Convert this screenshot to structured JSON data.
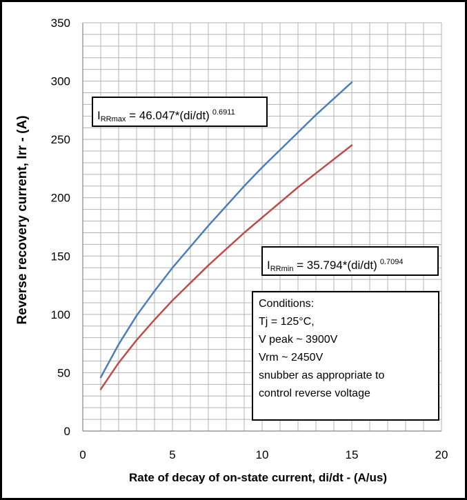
{
  "chart_data": {
    "type": "line",
    "xlabel": "Rate of decay of on-state current, di/dt - (A/us)",
    "ylabel": "Reverse recovery current, Irr  - (A)",
    "xlim": [
      0,
      20
    ],
    "ylim": [
      0,
      350
    ],
    "x_ticks": [
      "0",
      "5",
      "10",
      "15",
      "20"
    ],
    "y_ticks": [
      "0",
      "50",
      "100",
      "150",
      "200",
      "250",
      "300",
      "350"
    ],
    "grid": true,
    "series": [
      {
        "color": "#4a7ebb",
        "x": [
          1,
          2,
          3,
          4,
          5,
          6,
          7,
          8,
          9,
          10,
          11,
          12,
          13,
          14,
          15
        ],
        "values": [
          46.0,
          74.3,
          98.9,
          120.0,
          140.0,
          158.0,
          176.0,
          193.0,
          210.0,
          226.0,
          241.0,
          256.0,
          271.0,
          285.0,
          299.0
        ]
      },
      {
        "color": "#be4b48",
        "x": [
          1,
          2,
          3,
          4,
          5,
          6,
          7,
          8,
          9,
          10,
          11,
          12,
          13,
          14,
          15
        ],
        "values": [
          35.8,
          58.5,
          77.9,
          95.4,
          112.0,
          127.0,
          142.0,
          156.0,
          170.0,
          183.0,
          196.0,
          209.0,
          221.0,
          233.0,
          245.0
        ]
      }
    ],
    "annotations": {
      "irrmax": {
        "base": "I",
        "sub": "RRmax",
        "text": " = 46.047*(di/dt)",
        "exp": "0.6911"
      },
      "irrmin": {
        "base": "I",
        "sub": "RRmin",
        "text": " = 35.794*(di/dt)",
        "exp": "0.7094"
      },
      "conditions": [
        "Conditions:",
        "Tj = 125°C,",
        "V peak ~ 3900V",
        "Vrm ~ 2450V",
        "snubber as appropriate to",
        "control reverse voltage"
      ]
    }
  }
}
